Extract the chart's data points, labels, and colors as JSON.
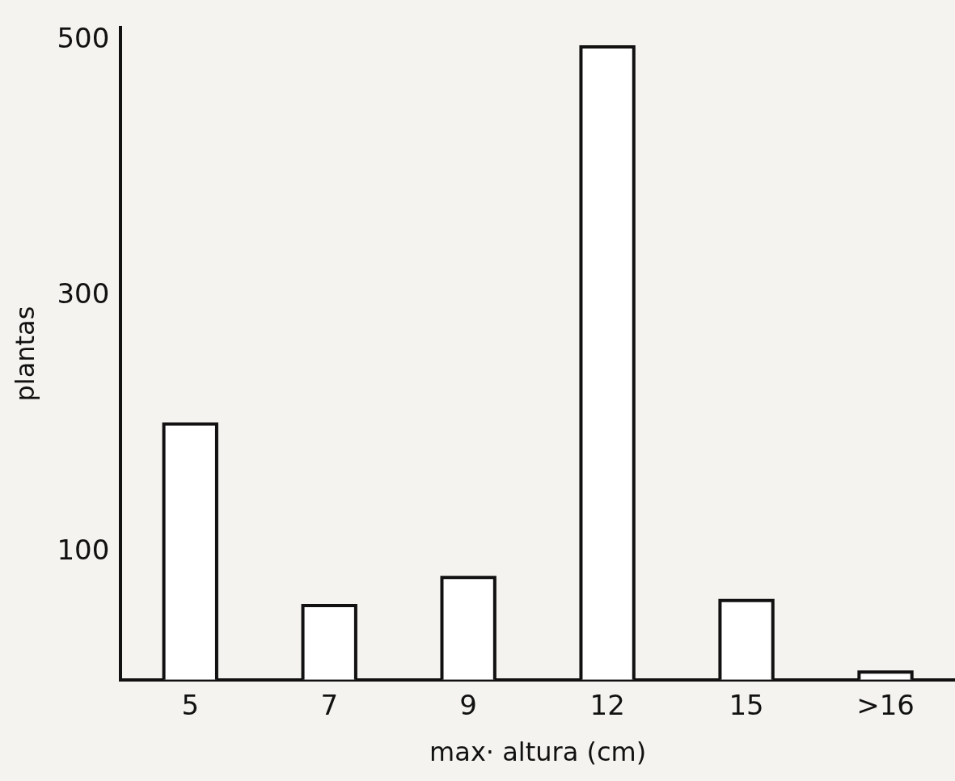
{
  "chart_data": {
    "type": "bar",
    "xlabel": "max· altura (cm)",
    "ylabel": "plantas",
    "categories": [
      "5",
      "7",
      "9",
      "12",
      "15",
      ">16"
    ],
    "values": [
      200,
      58,
      80,
      495,
      62,
      6
    ],
    "color": "#ffffff",
    "ylim": [
      0,
      510
    ],
    "yticks": [
      100,
      300,
      500
    ],
    "grid": false,
    "legend": false
  }
}
